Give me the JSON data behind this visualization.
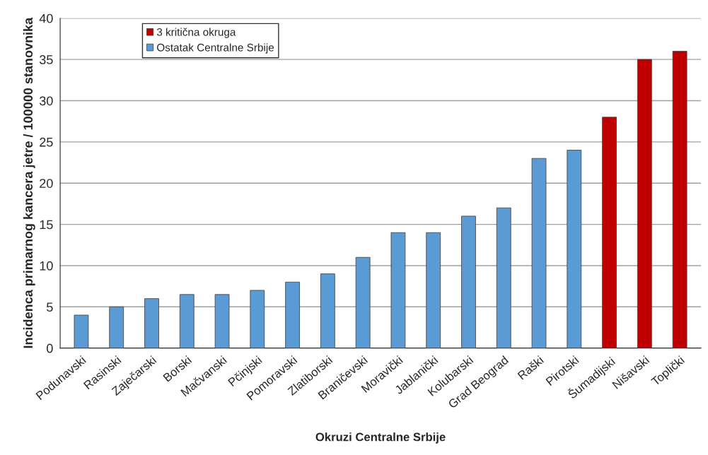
{
  "chart_data": {
    "type": "bar",
    "xlabel": "Okruzi Centralne Srbije",
    "ylabel": "Incidenca primarnog kancera jetre / 100000 stanovnika",
    "categories": [
      "Podunavski",
      "Rasinski",
      "Zaječarski",
      "Borski",
      "Mačvanski",
      "Pčinjski",
      "Pomoravski",
      "Zlatiborski",
      "Braničevski",
      "Moravički",
      "Jablanički",
      "Kolubarski",
      "Grad Beograd",
      "Raški",
      "Pirotski",
      "Šumadijski",
      "Nišavski",
      "Toplički"
    ],
    "series": [
      {
        "name": "3 kritična okruga",
        "color": "#c00000",
        "values": [
          null,
          null,
          null,
          null,
          null,
          null,
          null,
          null,
          null,
          null,
          null,
          null,
          null,
          null,
          null,
          28,
          35,
          36
        ]
      },
      {
        "name": "Ostatak Centralne Srbije",
        "color": "#5b9bd5",
        "values": [
          4,
          5,
          6,
          6.5,
          6.5,
          7,
          8,
          9,
          11,
          14,
          14,
          16,
          17,
          23,
          24,
          null,
          null,
          null
        ]
      }
    ],
    "ylim": [
      0,
      40
    ],
    "yticks": [
      0,
      5,
      10,
      15,
      20,
      25,
      30,
      35,
      40
    ],
    "grid": "y",
    "legend": "top left"
  }
}
